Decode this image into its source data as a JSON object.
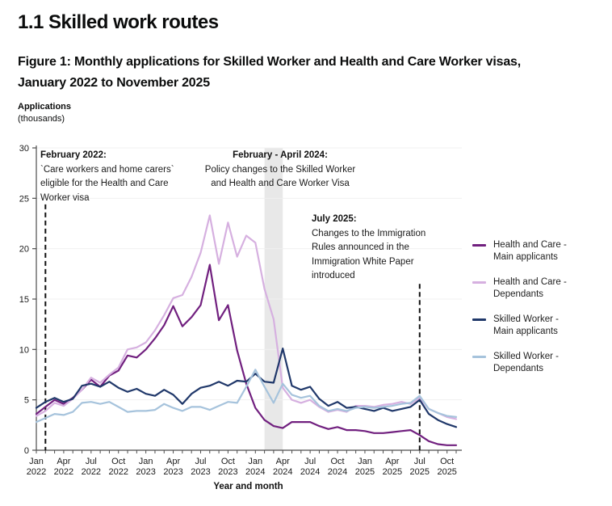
{
  "page": {
    "section_title": "1.1 Skilled work routes",
    "figure_title_line1": "Figure 1: Monthly applications for Skilled Worker and Health and Care Worker visas,",
    "figure_title_line2": "January 2022 to November 2025",
    "y_axis_unit_line1": "Applications",
    "y_axis_unit_line2": "(thousands)",
    "x_axis_title": "Year and month"
  },
  "annotations": [
    {
      "title": "February 2022:",
      "lines": [
        "`Care workers and home carers`",
        "eligible for the Health and Care",
        "Worker visa"
      ]
    },
    {
      "title": "February - April 2024:",
      "lines": [
        "Policy changes to the Skilled Worker",
        "and Health and Care Worker Visa"
      ]
    },
    {
      "title": "July 2025:",
      "lines": [
        "Changes to the Immigration",
        "Rules announced in the",
        "Immigration White Paper",
        "introduced"
      ]
    }
  ],
  "legend": {
    "items": [
      {
        "line1": "Health and Care -",
        "line2": "Main applicants"
      },
      {
        "line1": "Health and Care -",
        "line2": "Dependants"
      },
      {
        "line1": "Skilled Worker -",
        "line2": "Main applicants"
      },
      {
        "line1": "Skilled Worker -",
        "line2": "Dependants"
      }
    ]
  },
  "chart_data": {
    "type": "line",
    "title": "Monthly applications for Skilled Worker and Health and Care Worker visas, January 2022 to November 2025",
    "xlabel": "Year and month",
    "ylabel": "Applications (thousands)",
    "ylim": [
      0,
      30
    ],
    "y_ticks": [
      0,
      5,
      10,
      15,
      20,
      25,
      30
    ],
    "x_tick_every": 3,
    "grid": true,
    "legend_position": "right",
    "x": [
      "Jan 2022",
      "Feb 2022",
      "Mar 2022",
      "Apr 2022",
      "May 2022",
      "Jun 2022",
      "Jul 2022",
      "Aug 2022",
      "Sep 2022",
      "Oct 2022",
      "Nov 2022",
      "Dec 2022",
      "Jan 2023",
      "Feb 2023",
      "Mar 2023",
      "Apr 2023",
      "May 2023",
      "Jun 2023",
      "Jul 2023",
      "Aug 2023",
      "Sep 2023",
      "Oct 2023",
      "Nov 2023",
      "Dec 2023",
      "Jan 2024",
      "Feb 2024",
      "Mar 2024",
      "Apr 2024",
      "May 2024",
      "Jun 2024",
      "Jul 2024",
      "Aug 2024",
      "Sep 2024",
      "Oct 2024",
      "Nov 2024",
      "Dec 2024",
      "Jan 2025",
      "Feb 2025",
      "Mar 2025",
      "Apr 2025",
      "May 2025",
      "Jun 2025",
      "Jul 2025",
      "Aug 2025",
      "Sep 2025",
      "Oct 2025",
      "Nov 2025"
    ],
    "series": [
      {
        "name": "Health and Care - Main applicants",
        "color": "#71207f",
        "values": [
          3.6,
          4.3,
          5.0,
          4.6,
          5.2,
          6.0,
          7.0,
          6.3,
          7.4,
          7.9,
          9.4,
          9.2,
          10.0,
          11.1,
          12.4,
          14.3,
          12.3,
          13.2,
          14.4,
          18.4,
          12.9,
          14.4,
          9.9,
          6.6,
          4.2,
          3.0,
          2.4,
          2.2,
          2.8,
          2.8,
          2.8,
          2.4,
          2.1,
          2.3,
          2.0,
          2.0,
          1.9,
          1.7,
          1.7,
          1.8,
          1.9,
          2.0,
          1.5,
          0.9,
          0.6,
          0.5,
          0.5
        ]
      },
      {
        "name": "Health and Care - Dependants",
        "color": "#d6b0e0",
        "values": [
          3.4,
          3.9,
          4.7,
          4.4,
          5.1,
          6.0,
          7.2,
          6.7,
          7.5,
          8.2,
          10.0,
          10.2,
          10.7,
          11.9,
          13.4,
          15.1,
          15.4,
          17.2,
          19.6,
          23.3,
          18.5,
          22.6,
          19.2,
          21.3,
          20.6,
          16.0,
          13.0,
          6.2,
          5.0,
          4.7,
          5.0,
          4.3,
          3.8,
          4.0,
          3.8,
          4.4,
          4.4,
          4.3,
          4.5,
          4.6,
          4.8,
          4.6,
          5.2,
          4.1,
          3.7,
          3.3,
          3.1
        ]
      },
      {
        "name": "Skilled Worker - Main applicants",
        "color": "#20386a",
        "values": [
          4.2,
          4.8,
          5.2,
          4.8,
          5.1,
          6.4,
          6.6,
          6.3,
          6.8,
          6.2,
          5.8,
          6.1,
          5.6,
          5.4,
          6.0,
          5.5,
          4.6,
          5.6,
          6.2,
          6.4,
          6.8,
          6.4,
          6.9,
          6.8,
          7.6,
          6.8,
          6.7,
          10.1,
          6.4,
          6.0,
          6.3,
          5.1,
          4.4,
          4.8,
          4.2,
          4.3,
          4.1,
          3.9,
          4.2,
          3.9,
          4.1,
          4.3,
          5.0,
          3.6,
          3.0,
          2.6,
          2.3
        ]
      },
      {
        "name": "Skilled Worker - Dependants",
        "color": "#a6c3dc",
        "values": [
          2.8,
          3.2,
          3.6,
          3.5,
          3.8,
          4.7,
          4.8,
          4.6,
          4.8,
          4.3,
          3.8,
          3.9,
          3.9,
          4.0,
          4.6,
          4.2,
          3.9,
          4.3,
          4.3,
          4.0,
          4.4,
          4.8,
          4.7,
          6.3,
          8.0,
          6.3,
          4.7,
          6.6,
          5.5,
          5.2,
          5.4,
          4.4,
          3.9,
          4.1,
          3.9,
          4.2,
          4.3,
          4.2,
          4.3,
          4.4,
          4.6,
          4.7,
          5.4,
          4.1,
          3.7,
          3.4,
          3.3
        ]
      }
    ],
    "shaded_band": {
      "from_index": 25,
      "to_index": 27,
      "color": "#e8e8e8",
      "label": "February - April 2024"
    },
    "dashed_vlines": [
      {
        "index": 1,
        "top_value": 24.4,
        "label": "February 2022"
      },
      {
        "index": 42,
        "top_value": 16.5,
        "label": "July 2025"
      }
    ],
    "colors": {
      "grid": "#f0f0f0",
      "axis": "#4d4d4d",
      "tick_text": "#1a1a1a",
      "dashed_line": "#111111"
    }
  }
}
